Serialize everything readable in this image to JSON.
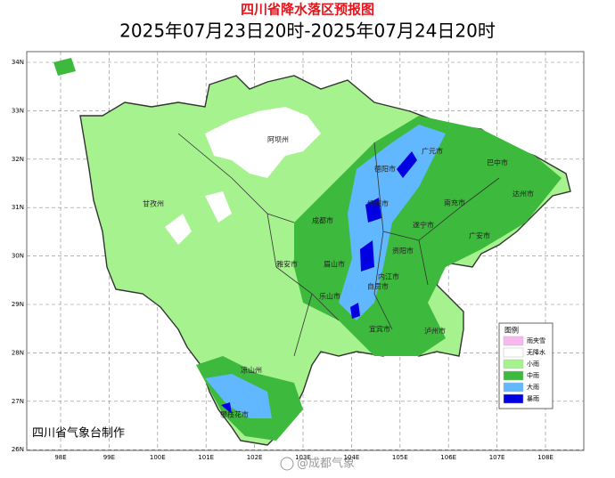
{
  "header": {
    "title": "四川省降水落区预报图",
    "subtitle": "2025年07月23日20时-2025年07月24日20时"
  },
  "map": {
    "lat_labels": [
      "34N",
      "33N",
      "32N",
      "31N",
      "30N",
      "29N",
      "28N",
      "27N",
      "26N"
    ],
    "lon_labels": [
      "98E",
      "99E",
      "100E",
      "101E",
      "102E",
      "103E",
      "104E",
      "105E",
      "106E",
      "107E",
      "108E"
    ],
    "cities": [
      "阿坝州",
      "甘孜州",
      "雅安市",
      "眉山市",
      "乐山市",
      "凉山州",
      "攀枝花市",
      "成都市",
      "德阳市",
      "绵阳市",
      "广元市",
      "巴中市",
      "达州市",
      "南充市",
      "遂宁市",
      "资阳市",
      "内江市",
      "自贡市",
      "宜宾市",
      "泸州市",
      "广安市"
    ]
  },
  "legend": {
    "title": "图例",
    "items": [
      {
        "label": "雨夹雪",
        "color": "#f7b8ee"
      },
      {
        "label": "无降水",
        "color": "#ffffff"
      },
      {
        "label": "小雨",
        "color": "#a6f28f"
      },
      {
        "label": "中雨",
        "color": "#3dba3d"
      },
      {
        "label": "大雨",
        "color": "#61b8ff"
      },
      {
        "label": "暴雨",
        "color": "#0000e1"
      }
    ]
  },
  "footer": {
    "credit": "四川省气象台制作",
    "watermark": "@成都气象"
  }
}
